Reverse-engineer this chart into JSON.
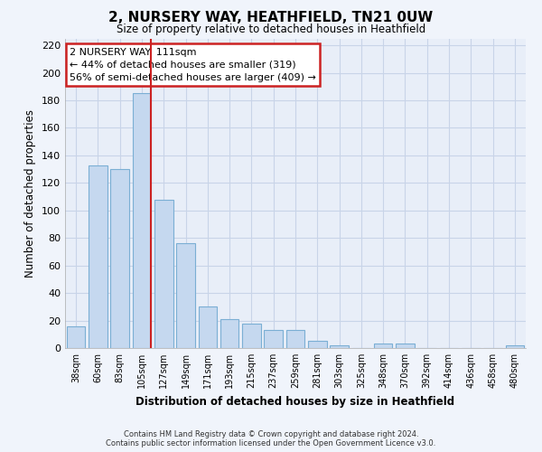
{
  "title": "2, NURSERY WAY, HEATHFIELD, TN21 0UW",
  "subtitle": "Size of property relative to detached houses in Heathfield",
  "xlabel": "Distribution of detached houses by size in Heathfield",
  "ylabel": "Number of detached properties",
  "categories": [
    "38sqm",
    "60sqm",
    "83sqm",
    "105sqm",
    "127sqm",
    "149sqm",
    "171sqm",
    "193sqm",
    "215sqm",
    "237sqm",
    "259sqm",
    "281sqm",
    "303sqm",
    "325sqm",
    "348sqm",
    "370sqm",
    "392sqm",
    "414sqm",
    "436sqm",
    "458sqm",
    "480sqm"
  ],
  "values": [
    16,
    133,
    130,
    185,
    108,
    76,
    30,
    21,
    18,
    13,
    13,
    5,
    2,
    0,
    3,
    3,
    0,
    0,
    0,
    0,
    2
  ],
  "bar_color": "#c5d8ef",
  "bar_edge_color": "#7bafd4",
  "highlight_bar_index": 3,
  "vline_color": "#cc2222",
  "annotation_title": "2 NURSERY WAY: 111sqm",
  "annotation_line1": "← 44% of detached houses are smaller (319)",
  "annotation_line2": "56% of semi-detached houses are larger (409) →",
  "annotation_box_color": "#ffffff",
  "annotation_box_edge": "#cc2222",
  "ylim": [
    0,
    225
  ],
  "yticks": [
    0,
    20,
    40,
    60,
    80,
    100,
    120,
    140,
    160,
    180,
    200,
    220
  ],
  "background_color": "#f0f4fb",
  "plot_bg_color": "#e8eef8",
  "grid_color": "#c8d4e8",
  "footer_line1": "Contains HM Land Registry data © Crown copyright and database right 2024.",
  "footer_line2": "Contains public sector information licensed under the Open Government Licence v3.0."
}
